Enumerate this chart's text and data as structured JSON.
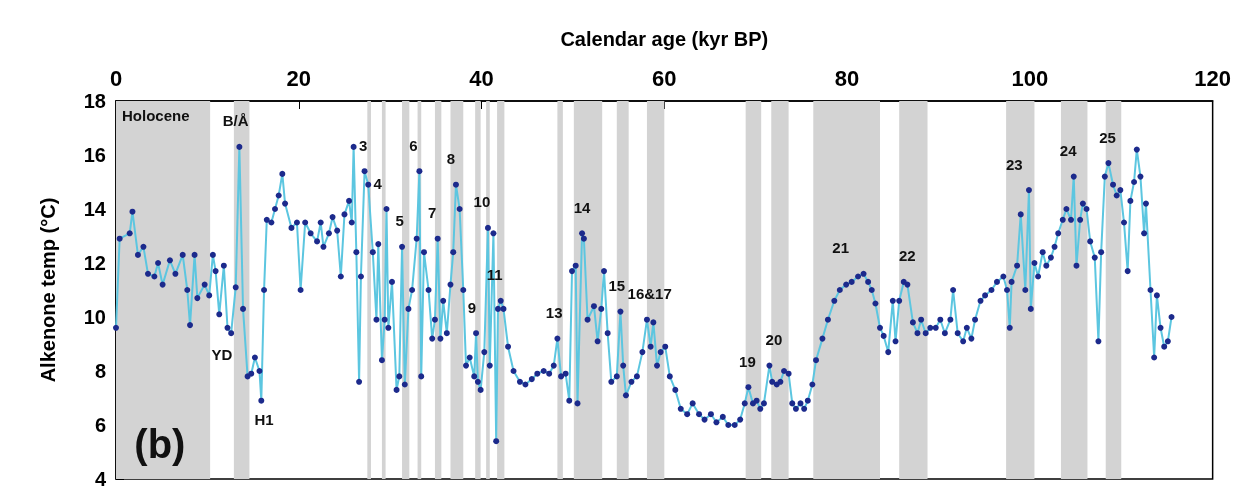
{
  "chart_data": {
    "type": "line",
    "xlabel": "Calendar age (kyr BP)",
    "ylabel": "Alkenone temp (°C)",
    "xlim": [
      0,
      120
    ],
    "xticks": [
      0,
      20,
      40,
      60,
      80,
      100,
      120
    ],
    "ylim": [
      4,
      18
    ],
    "yticks": [
      4,
      6,
      8,
      10,
      12,
      14,
      16,
      18
    ],
    "grid": false,
    "marker": "circle",
    "line_style": "solid",
    "series": [
      {
        "color": "#5cc6e0",
        "x": [
          0,
          0.4,
          1.5,
          1.8,
          2.4,
          3.0,
          3.5,
          4.2,
          4.6,
          5.1,
          5.9,
          6.5,
          7.3,
          7.8,
          8.1,
          8.6,
          8.9,
          9.7,
          10.2,
          10.6,
          10.9,
          11.3,
          11.8,
          12.2,
          12.6,
          13.1,
          13.5,
          13.9,
          14.4,
          14.8,
          15.2,
          15.7,
          15.9,
          16.2,
          16.5,
          17.0,
          17.4,
          17.8,
          18.2,
          18.5,
          19.2,
          19.8,
          20.2,
          20.7,
          21.3,
          22.0,
          22.4,
          22.7,
          23.3,
          23.7,
          24.2,
          24.6,
          25.0,
          25.5,
          25.8,
          26.0,
          26.3,
          26.6,
          26.8,
          27.2,
          27.6,
          28.1,
          28.5,
          28.7,
          29.1,
          29.4,
          29.6,
          29.8,
          30.2,
          30.7,
          31.0,
          31.3,
          31.6,
          32.0,
          32.4,
          32.9,
          33.2,
          33.4,
          33.7,
          34.2,
          34.6,
          34.9,
          35.2,
          35.5,
          35.8,
          36.2,
          36.6,
          36.9,
          37.2,
          37.6,
          38.0,
          38.3,
          38.7,
          39.2,
          39.4,
          39.6,
          39.9,
          40.3,
          40.7,
          40.9,
          41.3,
          41.6,
          41.8,
          42.1,
          42.4,
          42.9,
          43.5,
          44.2,
          44.8,
          45.5,
          46.1,
          46.8,
          47.4,
          47.9,
          48.3,
          48.7,
          49.2,
          49.6,
          49.9,
          50.3,
          50.5,
          51.0,
          51.2,
          51.6,
          52.3,
          52.7,
          53.1,
          53.4,
          53.8,
          54.2,
          54.8,
          55.2,
          55.5,
          55.8,
          56.4,
          57.0,
          57.6,
          58.1,
          58.5,
          58.8,
          59.2,
          59.6,
          60.1,
          60.6,
          61.2,
          61.8,
          62.5,
          63.1,
          63.8,
          64.4,
          65.1,
          65.7,
          66.4,
          67.0,
          67.7,
          68.3,
          68.8,
          69.2,
          69.7,
          70.1,
          70.5,
          70.9,
          71.5,
          71.8,
          72.3,
          72.7,
          73.1,
          73.6,
          74.0,
          74.4,
          74.9,
          75.3,
          75.7,
          76.2,
          76.6,
          77.3,
          77.9,
          78.6,
          79.2,
          79.9,
          80.5,
          81.2,
          81.8,
          82.3,
          82.7,
          83.1,
          83.6,
          84.0,
          84.5,
          85.0,
          85.3,
          85.7,
          86.2,
          86.6,
          87.2,
          87.7,
          88.1,
          88.6,
          89.1,
          89.7,
          90.2,
          90.7,
          91.3,
          91.6,
          92.1,
          92.7,
          93.1,
          93.6,
          94.0,
          94.6,
          95.1,
          95.8,
          96.4,
          97.1,
          97.5,
          97.8,
          98.0,
          98.6,
          99.0,
          99.5,
          99.9,
          100.1,
          100.5,
          100.9,
          101.4,
          101.8,
          102.3,
          102.7,
          103.1,
          103.6,
          104.0,
          104.5,
          104.8,
          105.1,
          105.5,
          105.8,
          106.2,
          106.6,
          107.1,
          107.5,
          107.8,
          108.2,
          108.6,
          109.1,
          109.5,
          109.9,
          110.3,
          110.7,
          111.0,
          111.4,
          111.7,
          112.1,
          112.5,
          112.7,
          113.2,
          113.6,
          113.9,
          114.3,
          114.7,
          115.1,
          115.5
        ],
        "values": [
          9.6,
          12.9,
          13.1,
          13.9,
          12.3,
          12.6,
          11.6,
          11.5,
          12.0,
          11.2,
          12.1,
          11.6,
          12.3,
          11.0,
          9.7,
          12.3,
          10.7,
          11.2,
          10.8,
          12.3,
          11.7,
          10.1,
          11.9,
          9.6,
          9.4,
          11.1,
          16.3,
          10.3,
          7.8,
          7.9,
          8.5,
          8.0,
          6.9,
          11.0,
          13.6,
          13.5,
          14.0,
          14.5,
          15.3,
          14.2,
          13.3,
          13.5,
          11.0,
          13.5,
          13.1,
          12.8,
          13.5,
          12.6,
          13.1,
          13.7,
          13.2,
          11.5,
          13.8,
          14.3,
          13.5,
          16.3,
          12.4,
          7.6,
          11.5,
          15.4,
          14.9,
          12.4,
          9.9,
          12.7,
          8.4,
          9.9,
          14.0,
          9.6,
          11.3,
          7.3,
          7.8,
          12.6,
          7.5,
          10.3,
          11.0,
          12.9,
          15.4,
          7.8,
          12.4,
          11.0,
          9.2,
          9.9,
          12.9,
          9.2,
          10.6,
          9.4,
          11.2,
          12.4,
          14.9,
          14.0,
          11.0,
          8.2,
          8.5,
          7.8,
          9.4,
          7.6,
          7.3,
          8.7,
          13.3,
          8.2,
          13.1,
          5.4,
          10.3,
          10.6,
          10.3,
          8.9,
          8.0,
          7.6,
          7.5,
          7.7,
          7.9,
          8.0,
          7.9,
          8.2,
          9.2,
          7.8,
          7.9,
          6.9,
          11.7,
          11.9,
          6.8,
          13.1,
          12.9,
          9.9,
          10.4,
          9.1,
          10.3,
          11.7,
          9.4,
          7.6,
          7.8,
          10.2,
          8.2,
          7.1,
          7.6,
          7.8,
          8.7,
          9.9,
          8.9,
          9.8,
          8.2,
          8.7,
          8.9,
          7.8,
          7.3,
          6.6,
          6.4,
          6.8,
          6.4,
          6.2,
          6.4,
          6.1,
          6.3,
          6.0,
          6.0,
          6.2,
          6.8,
          7.4,
          6.8,
          6.9,
          6.6,
          6.8,
          8.2,
          7.6,
          7.5,
          7.6,
          8.0,
          7.9,
          6.8,
          6.6,
          6.8,
          6.6,
          6.9,
          7.5,
          8.4,
          9.2,
          9.9,
          10.6,
          11.0,
          11.2,
          11.3,
          11.5,
          11.6,
          11.3,
          11.0,
          10.5,
          9.6,
          9.3,
          8.7,
          10.6,
          9.1,
          10.6,
          11.3,
          11.2,
          9.8,
          9.4,
          9.9,
          9.4,
          9.6,
          9.6,
          9.9,
          9.4,
          9.9,
          11.0,
          9.4,
          9.1,
          9.6,
          9.2,
          9.9,
          10.6,
          10.8,
          11.0,
          11.3,
          11.5,
          11.0,
          9.6,
          11.3,
          11.9,
          13.8,
          11.0,
          14.7,
          10.3,
          12.0,
          11.5,
          12.4,
          11.9,
          12.2,
          12.6,
          13.1,
          13.6,
          14.0,
          13.6,
          15.2,
          11.9,
          13.6,
          14.2,
          14.0,
          12.8,
          12.2,
          9.1,
          12.4,
          15.2,
          15.7,
          14.9,
          14.5,
          14.7,
          13.5,
          11.7,
          14.3,
          15.0,
          16.2,
          15.2,
          13.1,
          14.2,
          11.0,
          8.5,
          10.8,
          9.6,
          8.9,
          9.1,
          10.0
        ]
      }
    ],
    "bands": [
      {
        "axis": "x",
        "from": 0,
        "to": 10.3,
        "color": "#d3d3d3",
        "label": "Holocene"
      },
      {
        "axis": "x",
        "from": 12.9,
        "to": 14.6,
        "color": "#d3d3d3",
        "label": "B/Å"
      },
      {
        "axis": "x",
        "from": 27.5,
        "to": 27.9,
        "color": "#d3d3d3",
        "label": "3"
      },
      {
        "axis": "x",
        "from": 29.1,
        "to": 29.5,
        "color": "#d3d3d3",
        "label": "4"
      },
      {
        "axis": "x",
        "from": 31.3,
        "to": 32.1,
        "color": "#d3d3d3",
        "label": "5"
      },
      {
        "axis": "x",
        "from": 33.0,
        "to": 33.4,
        "color": "#d3d3d3",
        "label": "6"
      },
      {
        "axis": "x",
        "from": 34.9,
        "to": 35.6,
        "color": "#d3d3d3",
        "label": "7"
      },
      {
        "axis": "x",
        "from": 36.6,
        "to": 38.0,
        "color": "#d3d3d3",
        "label": "8"
      },
      {
        "axis": "x",
        "from": 39.3,
        "to": 39.9,
        "color": "#d3d3d3",
        "label": "9"
      },
      {
        "axis": "x",
        "from": 40.5,
        "to": 40.9,
        "color": "#d3d3d3",
        "label": "10"
      },
      {
        "axis": "x",
        "from": 41.7,
        "to": 42.5,
        "color": "#d3d3d3",
        "label": "11"
      },
      {
        "axis": "x",
        "from": 48.3,
        "to": 48.9,
        "color": "#d3d3d3",
        "label": "13"
      },
      {
        "axis": "x",
        "from": 50.1,
        "to": 53.2,
        "color": "#d3d3d3",
        "label": "14"
      },
      {
        "axis": "x",
        "from": 54.8,
        "to": 56.1,
        "color": "#d3d3d3",
        "label": "15"
      },
      {
        "axis": "x",
        "from": 58.1,
        "to": 60.0,
        "color": "#d3d3d3",
        "label": "16&17"
      },
      {
        "axis": "x",
        "from": 68.9,
        "to": 70.6,
        "color": "#d3d3d3",
        "label": "19"
      },
      {
        "axis": "x",
        "from": 71.7,
        "to": 73.6,
        "color": "#d3d3d3",
        "label": "20"
      },
      {
        "axis": "x",
        "from": 76.3,
        "to": 83.6,
        "color": "#d3d3d3",
        "label": "21"
      },
      {
        "axis": "x",
        "from": 85.7,
        "to": 88.8,
        "color": "#d3d3d3",
        "label": "22"
      },
      {
        "axis": "x",
        "from": 97.4,
        "to": 100.5,
        "color": "#d3d3d3",
        "label": "23"
      },
      {
        "axis": "x",
        "from": 103.4,
        "to": 106.3,
        "color": "#d3d3d3",
        "label": "24"
      },
      {
        "axis": "x",
        "from": 108.3,
        "to": 110.0,
        "color": "#d3d3d3",
        "label": "25"
      }
    ],
    "annotations": [
      "YD",
      "H1",
      "(b)"
    ]
  }
}
